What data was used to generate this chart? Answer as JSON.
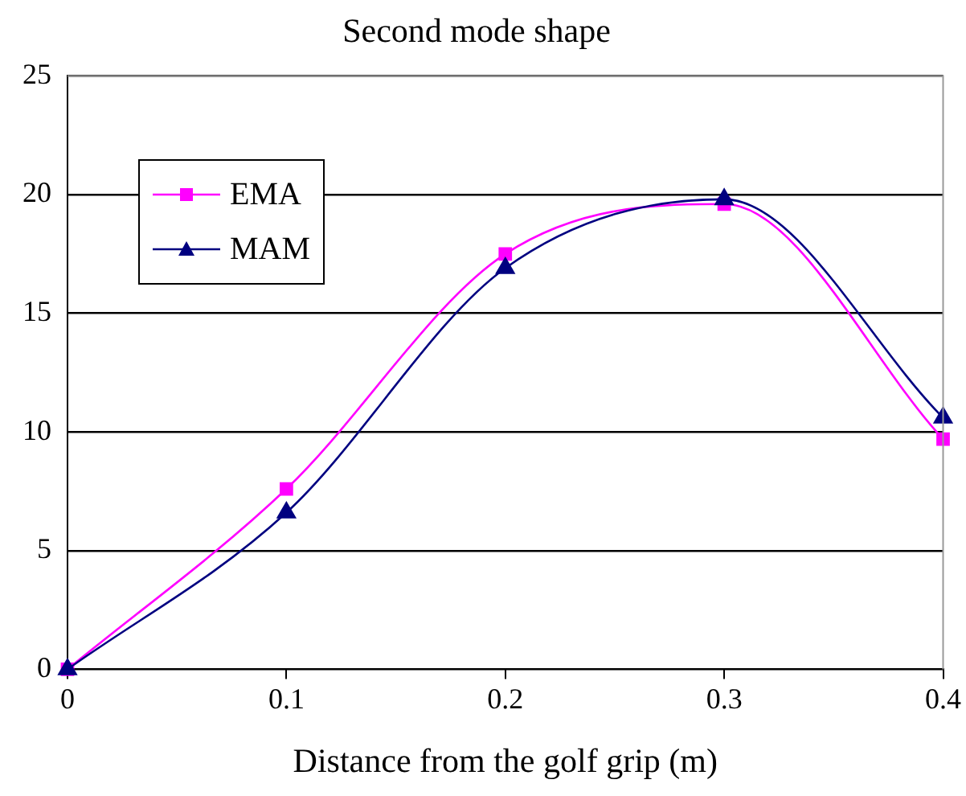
{
  "chart_data": {
    "type": "line",
    "title": "Second mode shape",
    "xlabel": "Distance from the golf grip (m)",
    "x": [
      0,
      0.1,
      0.2,
      0.3,
      0.4
    ],
    "series": [
      {
        "name": "EMA",
        "color": "#ff00ff",
        "marker": "square",
        "values": [
          0,
          7.6,
          17.5,
          19.6,
          9.7
        ]
      },
      {
        "name": "MAM",
        "color": "#000080",
        "marker": "triangle",
        "values": [
          0,
          6.6,
          16.9,
          19.8,
          10.6
        ]
      }
    ],
    "xlim": [
      0,
      0.4
    ],
    "xticks": [
      0,
      0.1,
      0.2,
      0.3,
      0.4
    ],
    "ylim": [
      0,
      25
    ],
    "yticks": [
      0,
      5,
      10,
      15,
      20,
      25
    ],
    "grid": "y",
    "legend": "top left",
    "line_style": "solid"
  }
}
